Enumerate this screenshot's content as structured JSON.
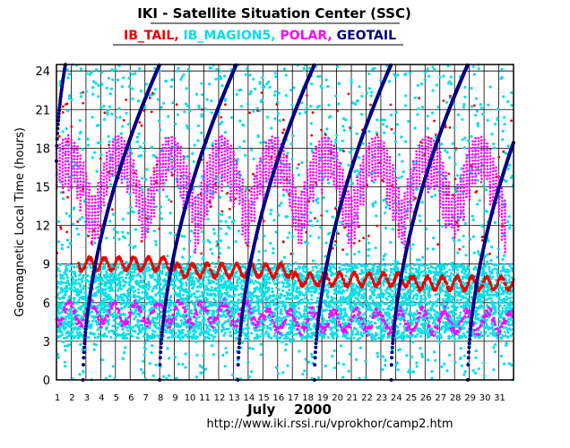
{
  "chart_data": {
    "type": "scatter",
    "title": "IKI - Satellite Situation Center (SSC)",
    "series": [
      {
        "name": "IB_TAIL",
        "color": "#ee0000"
      },
      {
        "name": "IB_MAGION5",
        "color": "#00e0e8"
      },
      {
        "name": "POLAR",
        "color": "#ff00ff"
      },
      {
        "name": "GEOTAIL",
        "color": "#000080"
      }
    ],
    "series_separator": ", ",
    "ylabel": "Geomagnetic  Local Time  (hours)",
    "xlabel": "July    2000",
    "footer": "http://www.iki.rssi.ru/vprokhor/camp2.htm",
    "x_ticks": [
      "1",
      "2",
      "3",
      "4",
      "5",
      "6",
      "7",
      "8",
      "9",
      "10",
      "11",
      "12",
      "13",
      "14",
      "15",
      "16",
      "17",
      "18",
      "19",
      "20",
      "21",
      "22",
      "23",
      "24",
      "25",
      "26",
      "27",
      "28",
      "29",
      "30",
      "31"
    ],
    "y_ticks": [
      {
        "v": 0,
        "label": "0"
      },
      {
        "v": 3,
        "label": "3"
      },
      {
        "v": 6,
        "label": "6"
      },
      {
        "v": 9,
        "label": "9"
      },
      {
        "v": 12,
        "label": "12"
      },
      {
        "v": 15,
        "label": "15"
      },
      {
        "v": 18,
        "label": "18"
      },
      {
        "v": 21,
        "label": "21"
      },
      {
        "v": 24,
        "label": "24"
      }
    ],
    "xlim": [
      1,
      32
    ],
    "ylim": [
      0,
      24.5
    ],
    "grid": true,
    "legend": "top-center",
    "geotail_crossings": [
      {
        "x0": 1.0,
        "y0": 17.0
      },
      {
        "x0": 2.8,
        "y0": 0
      },
      {
        "x0": 8.0,
        "y0": 0
      },
      {
        "x0": 13.3,
        "y0": 0
      },
      {
        "x0": 18.5,
        "y0": 0
      },
      {
        "x0": 23.7,
        "y0": 0
      },
      {
        "x0": 28.9,
        "y0": 0
      }
    ],
    "ib_tail_baseline_hours": [
      9.0,
      8.5,
      7.8,
      7.5
    ]
  }
}
